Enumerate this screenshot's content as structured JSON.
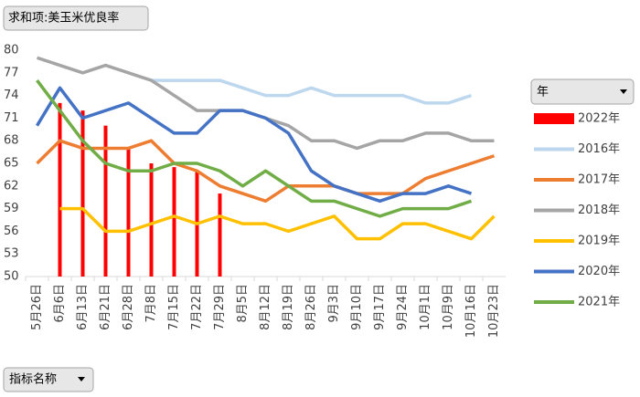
{
  "chart_data": {
    "type": "line",
    "field_buttons": {
      "value": "求和项:美玉米优良率",
      "axis": "指标名称",
      "legend": "年"
    },
    "categories": [
      "5月26日",
      "6月6日",
      "6月13日",
      "6月21日",
      "6月28日",
      "7月8日",
      "7月15日",
      "7月22日",
      "7月29日",
      "8月5日",
      "8月12日",
      "8月19日",
      "8月26日",
      "9月3日",
      "9月10日",
      "9月17日",
      "9月24日",
      "10月1日",
      "10月9日",
      "10月16日",
      "10月23日"
    ],
    "ylim": [
      50,
      80
    ],
    "yticks": [
      50,
      53,
      56,
      59,
      62,
      65,
      68,
      71,
      74,
      77,
      80
    ],
    "grid": false,
    "legend_position": "right",
    "series": [
      {
        "name": "2022年",
        "type": "bar",
        "color": "#ff0000",
        "values": [
          null,
          73,
          72,
          70,
          67,
          65,
          64.5,
          64,
          61,
          null,
          null,
          null,
          null,
          null,
          null,
          null,
          null,
          null,
          null,
          null,
          null
        ]
      },
      {
        "name": "2016年",
        "color": "#bdd7ee",
        "values": [
          null,
          null,
          null,
          null,
          null,
          76,
          76,
          76,
          76,
          75,
          74,
          74,
          75,
          74,
          74,
          74,
          74,
          73,
          73,
          74,
          null
        ]
      },
      {
        "name": "2017年",
        "color": "#ed7d31",
        "values": [
          65,
          68,
          67,
          67,
          67,
          68,
          65,
          64,
          62,
          61,
          60,
          62,
          62,
          62,
          61,
          61,
          61,
          63,
          64,
          65,
          66
        ]
      },
      {
        "name": "2018年",
        "color": "#a5a5a5",
        "values": [
          79,
          78,
          77,
          78,
          77,
          76,
          74,
          72,
          72,
          72,
          71,
          70,
          68,
          68,
          67,
          68,
          68,
          69,
          69,
          68,
          68
        ]
      },
      {
        "name": "2019年",
        "color": "#ffc000",
        "values": [
          null,
          59,
          59,
          56,
          56,
          57,
          58,
          57,
          58,
          57,
          57,
          56,
          57,
          58,
          55,
          55,
          57,
          57,
          56,
          55,
          58
        ]
      },
      {
        "name": "2020年",
        "color": "#4472c4",
        "values": [
          70,
          75,
          71,
          72,
          73,
          71,
          69,
          69,
          72,
          72,
          71,
          69,
          64,
          62,
          61,
          60,
          61,
          61,
          62,
          61,
          null
        ]
      },
      {
        "name": "2021年",
        "color": "#70ad47",
        "values": [
          76,
          72,
          68,
          65,
          64,
          64,
          65,
          65,
          64,
          62,
          64,
          62,
          60,
          60,
          59,
          58,
          59,
          59,
          59,
          60,
          null
        ]
      }
    ]
  }
}
